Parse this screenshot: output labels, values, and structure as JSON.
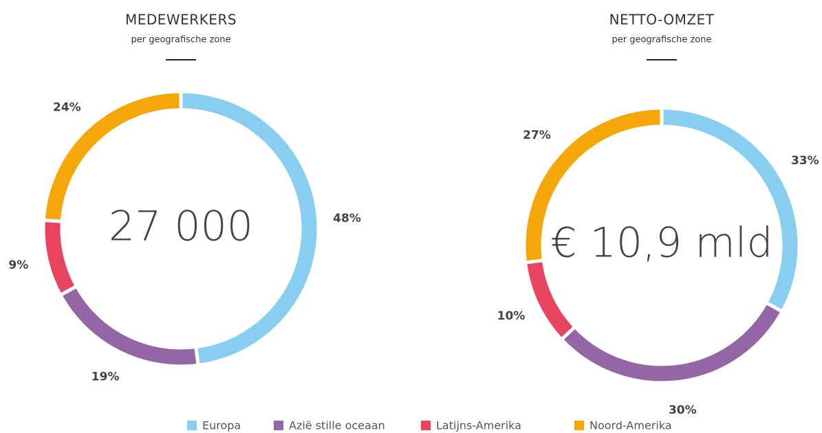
{
  "chart_data": [
    {
      "type": "pie",
      "title": "MEDEWERKERS",
      "subtitle": "per geografische zone",
      "center_label": "27 000",
      "categories": [
        "Europa",
        "Azië stille oceaan",
        "Latijns-Amerika",
        "Noord-Amerika"
      ],
      "values": [
        48,
        19,
        9,
        24
      ],
      "value_labels": [
        "48%",
        "19%",
        "9%",
        "24%"
      ],
      "colors": [
        "#87cef0",
        "#9566a6",
        "#e8445f",
        "#f5a70a"
      ]
    },
    {
      "type": "pie",
      "title": "NETTO-OMZET",
      "subtitle": "per geografische zone",
      "center_label": "€ 10,9 mld",
      "categories": [
        "Europa",
        "Azië stille oceaan",
        "Latijns-Amerika",
        "Noord-Amerika"
      ],
      "values": [
        33,
        30,
        10,
        27
      ],
      "value_labels": [
        "33%",
        "30%",
        "10%",
        "27%"
      ],
      "colors": [
        "#87cef0",
        "#9566a6",
        "#e8445f",
        "#f5a70a"
      ]
    }
  ]
}
